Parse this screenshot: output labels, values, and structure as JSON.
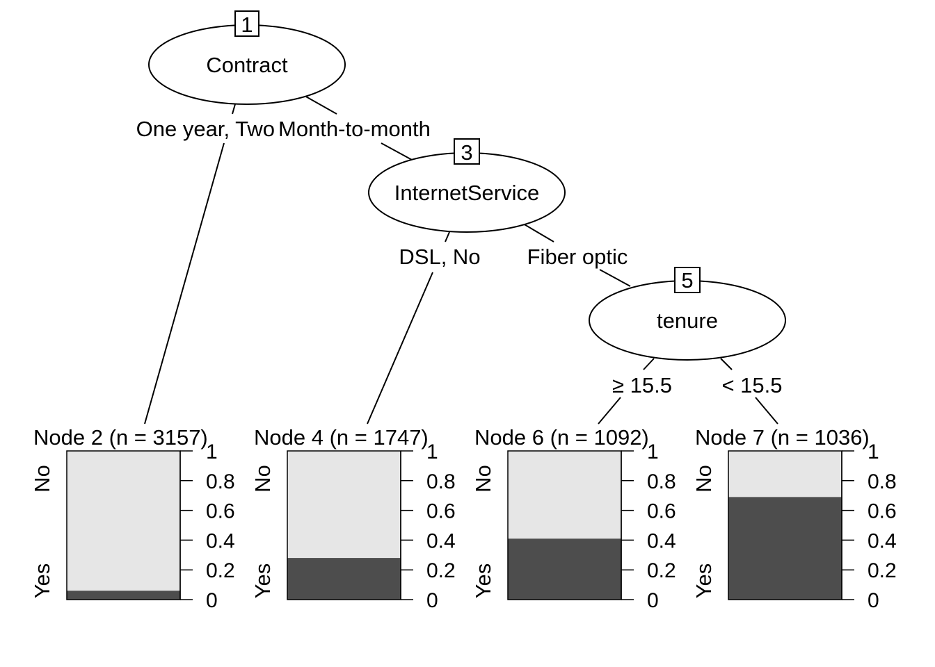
{
  "tree": {
    "nodes": [
      {
        "id": "1",
        "variable": "Contract"
      },
      {
        "id": "3",
        "variable": "InternetService"
      },
      {
        "id": "5",
        "variable": "tenure"
      }
    ],
    "splits": [
      {
        "from": "1",
        "left": "One year, Two",
        "right": "Month-to-month"
      },
      {
        "from": "3",
        "left": "DSL, No",
        "right": "Fiber optic"
      },
      {
        "from": "5",
        "left": "≥ 15.5",
        "right": "< 15.5"
      }
    ]
  },
  "chart_data": {
    "type": "bar",
    "categories": [
      "No",
      "Yes"
    ],
    "ylim": [
      0,
      1
    ],
    "ticks": [
      "0",
      "0.2",
      "0.4",
      "0.6",
      "0.8",
      "1"
    ],
    "colors": {
      "No": "#e6e6e6",
      "Yes": "#4d4d4d"
    },
    "terminal_nodes": [
      {
        "title": "Node 2 (n = 3157)",
        "yes": 0.06
      },
      {
        "title": "Node 4 (n = 1747)",
        "yes": 0.28
      },
      {
        "title": "Node 6 (n = 1092)",
        "yes": 0.41
      },
      {
        "title": "Node 7 (n = 1036)",
        "yes": 0.69
      }
    ]
  }
}
